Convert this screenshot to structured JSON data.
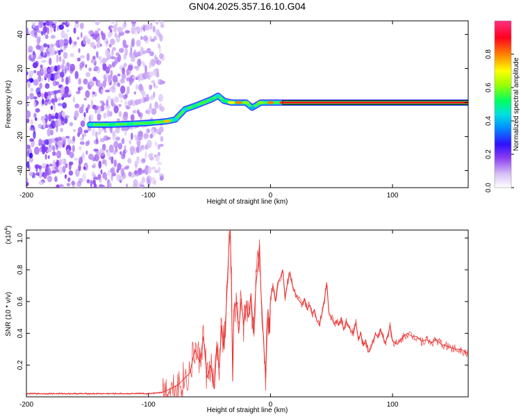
{
  "chart_data": [
    {
      "type": "heatmap",
      "title": "GN04.2025.357.16.10.G04",
      "xlabel": "Height of straight line (km)",
      "ylabel": "Frequency (Hz)",
      "xlim": [
        -200,
        162
      ],
      "ylim": [
        -50,
        48
      ],
      "xticks": [
        -200,
        -100,
        0,
        100
      ],
      "yticks": [
        -40,
        -20,
        0,
        20,
        40
      ],
      "colorbar": {
        "label": "Normalized spectral amplitude",
        "range": [
          0,
          1
        ],
        "ticks": [
          0.0,
          0.2,
          0.4,
          0.6,
          0.8
        ],
        "tick_labels": [
          "0.0",
          "0.2",
          "0.4",
          "0.6",
          "0.8"
        ]
      },
      "ridge": {
        "x": [
          -148,
          -130,
          -115,
          -100,
          -92,
          -85,
          -78,
          -70,
          -62,
          -55,
          -48,
          -43,
          -38,
          -32,
          -26,
          -20,
          -15,
          -8,
          0,
          10,
          25,
          60,
          110,
          162
        ],
        "y": [
          -13,
          -13,
          -12.5,
          -12,
          -11.5,
          -11,
          -10,
          -4,
          -2,
          0,
          2,
          4,
          1,
          0,
          0,
          0,
          -3,
          0,
          0,
          0,
          0,
          0,
          0,
          0
        ],
        "a": [
          0.45,
          0.5,
          0.5,
          0.55,
          0.6,
          0.75,
          0.45,
          0.45,
          0.5,
          0.55,
          0.5,
          0.45,
          0.5,
          0.7,
          0.8,
          0.6,
          0.4,
          0.6,
          0.8,
          0.85,
          0.9,
          0.9,
          0.9,
          0.9
        ]
      },
      "noise_region_x": [
        -200,
        -88
      ]
    },
    {
      "type": "line",
      "title": "",
      "xlabel": "Height of straight line (km)",
      "ylabel": "SNR (10 * v/v)",
      "multiplier_label": "(x10",
      "multiplier_exp": "4",
      "multiplier_close": ")",
      "xlim": [
        -200,
        162
      ],
      "ylim": [
        0,
        1.05
      ],
      "xticks": [
        -200,
        -100,
        0,
        100
      ],
      "yticks": [
        0.2,
        0.4,
        0.6,
        0.8,
        1.0
      ],
      "ytick_labels": [
        "0.2",
        "0.4",
        "0.6",
        "0.8",
        "1.0"
      ],
      "series": [
        {
          "color": "#e8312f",
          "x": [
            -200,
            -150,
            -100,
            -88,
            -82,
            -75,
            -70,
            -66,
            -62,
            -58,
            -55,
            -52,
            -49,
            -46,
            -44,
            -42,
            -40,
            -38,
            -36,
            -34,
            -33,
            -32,
            -31,
            -30,
            -28,
            -26,
            -24,
            -22,
            -20,
            -18,
            -16,
            -14,
            -12,
            -10,
            -9,
            -8,
            -6,
            -4,
            -3,
            -2,
            -1,
            0,
            2,
            4,
            6,
            8,
            10,
            12,
            14,
            16,
            18,
            20,
            22,
            24,
            26,
            28,
            30,
            32,
            34,
            36,
            38,
            40,
            42,
            44,
            46,
            48,
            50,
            52,
            54,
            56,
            58,
            60,
            62,
            64,
            66,
            68,
            70,
            72,
            74,
            76,
            78,
            80,
            82,
            84,
            86,
            88,
            90,
            92,
            94,
            96,
            98,
            100,
            104,
            108,
            112,
            116,
            120,
            124,
            128,
            132,
            136,
            140,
            144,
            148,
            152,
            156,
            160,
            162
          ],
          "y": [
            0.02,
            0.02,
            0.02,
            0.03,
            0.05,
            0.08,
            0.12,
            0.15,
            0.3,
            0.22,
            0.38,
            0.12,
            0.2,
            0.05,
            0.32,
            0.18,
            0.45,
            0.3,
            0.6,
            0.95,
            1.05,
            0.7,
            0.1,
            0.55,
            0.6,
            0.4,
            0.62,
            0.45,
            0.58,
            0.5,
            0.65,
            0.4,
            0.7,
            0.85,
            0.96,
            0.7,
            0.4,
            0.12,
            0.45,
            0.55,
            0.4,
            0.62,
            0.7,
            0.6,
            0.72,
            0.75,
            0.8,
            0.62,
            0.72,
            0.78,
            0.7,
            0.66,
            0.62,
            0.6,
            0.58,
            0.62,
            0.55,
            0.58,
            0.52,
            0.55,
            0.48,
            0.45,
            0.52,
            0.6,
            0.72,
            0.52,
            0.5,
            0.46,
            0.48,
            0.45,
            0.5,
            0.42,
            0.48,
            0.44,
            0.42,
            0.4,
            0.47,
            0.36,
            0.4,
            0.32,
            0.36,
            0.28,
            0.3,
            0.35,
            0.4,
            0.37,
            0.43,
            0.38,
            0.34,
            0.38,
            0.45,
            0.35,
            0.33,
            0.37,
            0.4,
            0.38,
            0.38,
            0.35,
            0.36,
            0.34,
            0.36,
            0.33,
            0.32,
            0.31,
            0.3,
            0.3,
            0.28,
            0.27
          ]
        }
      ]
    }
  ]
}
